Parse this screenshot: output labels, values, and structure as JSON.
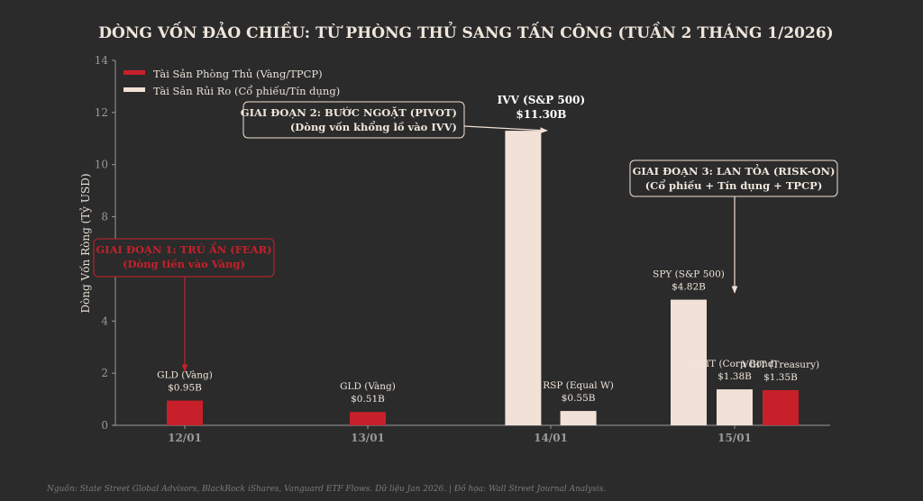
{
  "colors": {
    "defensive": "#c8202a",
    "risk": "#f2e1d6",
    "background": "#2b2b2b",
    "text": "#efe6dc",
    "axis": "#9a9a9a"
  },
  "chart_data": {
    "type": "bar",
    "title": "DÒNG VỐN ĐẢO CHIỀU: TỪ PHÒNG THỦ SANG TẤN CÔNG (TUẦN 2 THÁNG 1/2026)",
    "ylabel": "Dòng Vốn Ròng (Tỷ USD)",
    "ylim": [
      0,
      14
    ],
    "yticks": [
      0,
      2,
      4,
      8,
      10,
      12,
      14
    ],
    "categories": [
      "12/01",
      "13/01",
      "14/01",
      "15/01"
    ],
    "legend": [
      {
        "name": "Tài Sản Phòng Thủ (Vàng/TPCP)",
        "group": "defensive"
      },
      {
        "name": "Tài Sản Rủi Ro (Cổ phiếu/Tín dụng)",
        "group": "risk"
      }
    ],
    "legend_position": "top-left",
    "bars": [
      {
        "category": "12/01",
        "offset": 0,
        "value": 0.95,
        "group": "defensive",
        "name": "GLD (Vàng)",
        "value_label": "$0.95B"
      },
      {
        "category": "13/01",
        "offset": 0,
        "value": 0.51,
        "group": "defensive",
        "name": "GLD (Vàng)",
        "value_label": "$0.51B"
      },
      {
        "category": "14/01",
        "offset": -0.3,
        "value": 11.3,
        "group": "risk",
        "name": "IVV (S&P 500)",
        "value_label": "$11.30B",
        "highlight": true
      },
      {
        "category": "14/01",
        "offset": 0.3,
        "value": 0.55,
        "group": "risk",
        "name": "RSP (Equal W)",
        "value_label": "$0.55B"
      },
      {
        "category": "15/01",
        "offset": -0.5,
        "value": 4.82,
        "group": "risk",
        "name": "SPY (S&P 500)",
        "value_label": "$4.82B"
      },
      {
        "category": "15/01",
        "offset": 0,
        "value": 1.38,
        "group": "risk",
        "name": "VCIT (Corp Bond)",
        "value_label": "$1.38B"
      },
      {
        "category": "15/01",
        "offset": 0.5,
        "value": 1.35,
        "group": "defensive",
        "name": "VGIT (Treasury)",
        "value_label": "$1.35B"
      }
    ],
    "annotations": [
      {
        "id": "phase1",
        "line1": "GIAI ĐOẠN 1: TRÚ ẨN (FEAR)",
        "line2": "(Dòng tiền vào Vàng)",
        "group": "defensive"
      },
      {
        "id": "phase2",
        "line1": "GIAI ĐOẠN 2: BƯỚC NGOẶT (PIVOT)",
        "line2": "(Dòng vốn khổng lồ vào IVV)",
        "group": "risk"
      },
      {
        "id": "phase3",
        "line1": "GIAI ĐOẠN 3: LAN TỎA (RISK-ON)",
        "line2": "(Cổ phiếu + Tín dụng + TPCP)",
        "group": "risk"
      }
    ],
    "grid": false
  },
  "footer": {
    "source": "Nguồn: State Street Global Advisors, BlackRock iShares, Vanguard ETF Flows. Dữ liệu Jan 2026. | Đồ họa: Wall Street Journal Analysis."
  }
}
